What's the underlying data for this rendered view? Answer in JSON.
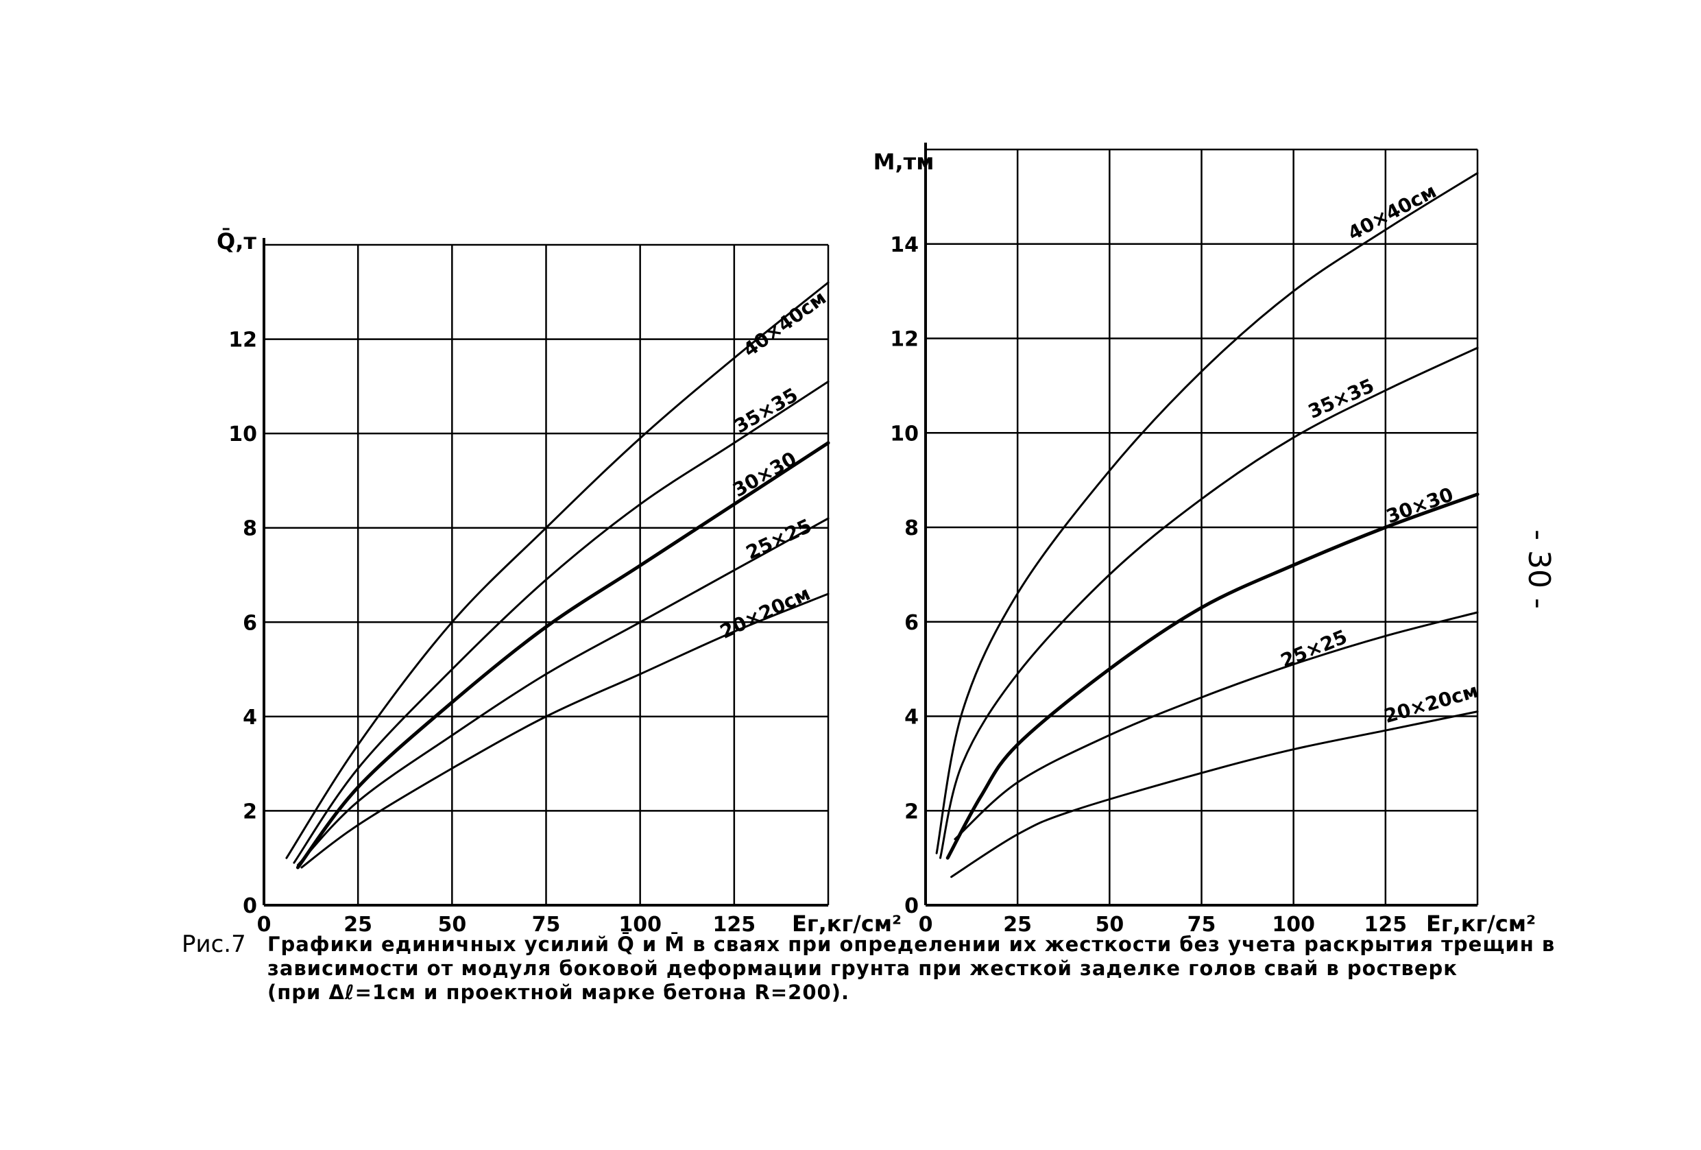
{
  "page_number": "- 30 -",
  "caption": {
    "fig_label": "Рис.7",
    "lines": [
      "Графики единичных усилий Q̄ и M̄ в сваях при определении их жесткости без учета раскрытия трещин в",
      "зависимости от модуля боковой деформации грунта при жесткой заделке голов свай в ростверк",
      "(при Δℓ=1см и проектной марке бетона R=200)."
    ]
  },
  "chart_data": [
    {
      "type": "line",
      "xlabel": "Eг,кг/см²",
      "ylabel": "Q̄,т",
      "xlim": [
        0,
        150
      ],
      "ylim": [
        0,
        14
      ],
      "x_ticks": [
        0,
        25,
        50,
        75,
        100,
        125
      ],
      "y_ticks": [
        0,
        2,
        4,
        6,
        8,
        10,
        12
      ],
      "grid": true,
      "series": [
        {
          "name": "40×40см",
          "stroke": 3,
          "x": [
            6,
            25,
            50,
            75,
            100,
            125,
            150
          ],
          "y": [
            1.0,
            3.4,
            6.0,
            8.0,
            9.9,
            11.6,
            13.2
          ]
        },
        {
          "name": "35×35",
          "stroke": 3,
          "x": [
            8,
            25,
            50,
            75,
            100,
            125,
            150
          ],
          "y": [
            0.9,
            2.9,
            5.0,
            6.9,
            8.5,
            9.8,
            11.1
          ]
        },
        {
          "name": "30×30",
          "stroke": 5,
          "x": [
            9,
            25,
            50,
            75,
            100,
            125,
            150
          ],
          "y": [
            0.8,
            2.5,
            4.3,
            5.9,
            7.2,
            8.5,
            9.8
          ]
        },
        {
          "name": "25×25",
          "stroke": 3,
          "x": [
            9,
            25,
            50,
            75,
            100,
            125,
            150
          ],
          "y": [
            0.85,
            2.2,
            3.6,
            4.9,
            6.0,
            7.1,
            8.2
          ]
        },
        {
          "name": "20×20см",
          "stroke": 3,
          "x": [
            10,
            25,
            50,
            75,
            100,
            125,
            150
          ],
          "y": [
            0.8,
            1.7,
            2.9,
            4.0,
            4.9,
            5.8,
            6.6
          ]
        }
      ]
    },
    {
      "type": "line",
      "xlabel": "Eг,кг/см²",
      "ylabel": "M,тм",
      "xlim": [
        0,
        150
      ],
      "ylim": [
        0,
        16
      ],
      "x_ticks": [
        0,
        25,
        50,
        75,
        100,
        125
      ],
      "y_ticks": [
        0,
        2,
        4,
        6,
        8,
        10,
        12,
        14
      ],
      "grid": true,
      "series": [
        {
          "name": "40×40см",
          "stroke": 3,
          "x": [
            3,
            10,
            25,
            50,
            75,
            100,
            125,
            150
          ],
          "y": [
            1.1,
            4.1,
            6.6,
            9.2,
            11.3,
            13.0,
            14.3,
            15.5
          ]
        },
        {
          "name": "35×35",
          "stroke": 3,
          "x": [
            4,
            10,
            25,
            50,
            75,
            100,
            125,
            150
          ],
          "y": [
            1.0,
            3.0,
            4.9,
            7.0,
            8.6,
            9.9,
            10.9,
            11.8
          ]
        },
        {
          "name": "30×30",
          "stroke": 5,
          "x": [
            6,
            15,
            25,
            50,
            75,
            100,
            125,
            150
          ],
          "y": [
            1.0,
            2.3,
            3.4,
            5.0,
            6.3,
            7.2,
            8.0,
            8.7
          ]
        },
        {
          "name": "25×25",
          "stroke": 3,
          "x": [
            8,
            25,
            50,
            75,
            100,
            125,
            150
          ],
          "y": [
            1.4,
            2.6,
            3.6,
            4.4,
            5.1,
            5.7,
            6.2
          ]
        },
        {
          "name": "20×20см",
          "stroke": 3,
          "x": [
            7,
            25,
            40,
            75,
            100,
            125,
            150
          ],
          "y": [
            0.6,
            1.5,
            2.0,
            2.8,
            3.3,
            3.7,
            4.1
          ]
        }
      ]
    }
  ]
}
